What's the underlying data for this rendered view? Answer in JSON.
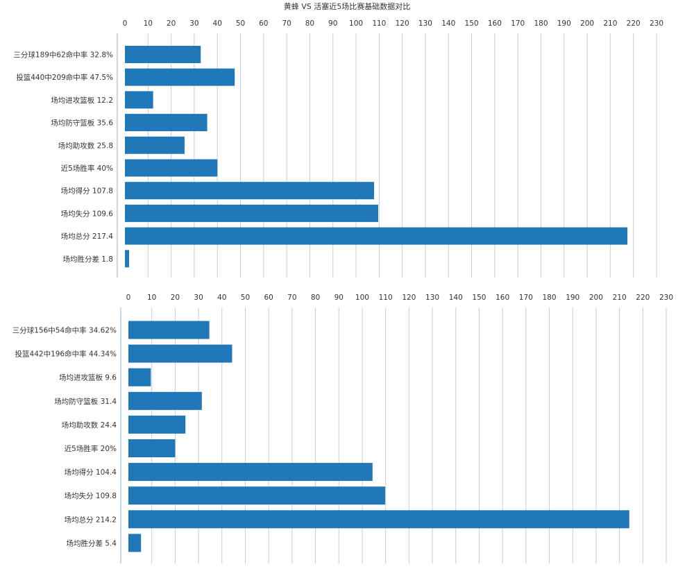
{
  "title": "黄蜂 VS 活塞近5场比赛基础数据对比",
  "colors": {
    "bar": "#2178b8",
    "grid": "#c9ccd2",
    "axis": "#b0cfe6",
    "text": "#333333"
  },
  "chart_data": [
    {
      "type": "bar",
      "orientation": "horizontal",
      "xlim": [
        0,
        230
      ],
      "x_ticks": [
        0,
        10,
        20,
        30,
        40,
        50,
        60,
        70,
        80,
        90,
        100,
        110,
        120,
        130,
        140,
        150,
        160,
        170,
        180,
        190,
        200,
        210,
        220,
        230
      ],
      "grid": true,
      "categories": [
        "三分球189中62命中率 32.8%",
        "投篮440中209命中率 47.5%",
        "场均进攻篮板 12.2",
        "场均防守篮板 35.6",
        "场均助攻数 25.8",
        "近5场胜率 40%",
        "场均得分 107.8",
        "场均失分 109.6",
        "场均总分 217.4",
        "场均胜分差 1.8"
      ],
      "values": [
        32.8,
        47.5,
        12.2,
        35.6,
        25.8,
        40,
        107.8,
        109.6,
        217.4,
        1.8
      ]
    },
    {
      "type": "bar",
      "orientation": "horizontal",
      "xlim": [
        0,
        230
      ],
      "x_ticks": [
        0,
        10,
        20,
        30,
        40,
        50,
        60,
        70,
        80,
        90,
        100,
        110,
        120,
        130,
        140,
        150,
        160,
        170,
        180,
        190,
        200,
        210,
        220,
        230
      ],
      "grid": true,
      "categories": [
        "三分球156中54命中率 34.62%",
        "投篮442中196命中率 44.34%",
        "场均进攻篮板 9.6",
        "场均防守篮板 31.4",
        "场均助攻数 24.4",
        "近5场胜率 20%",
        "场均得分 104.4",
        "场均失分 109.8",
        "场均总分 214.2",
        "场均胜分差 5.4"
      ],
      "values": [
        34.62,
        44.34,
        9.6,
        31.4,
        24.4,
        20,
        104.4,
        109.8,
        214.2,
        5.4
      ]
    }
  ]
}
